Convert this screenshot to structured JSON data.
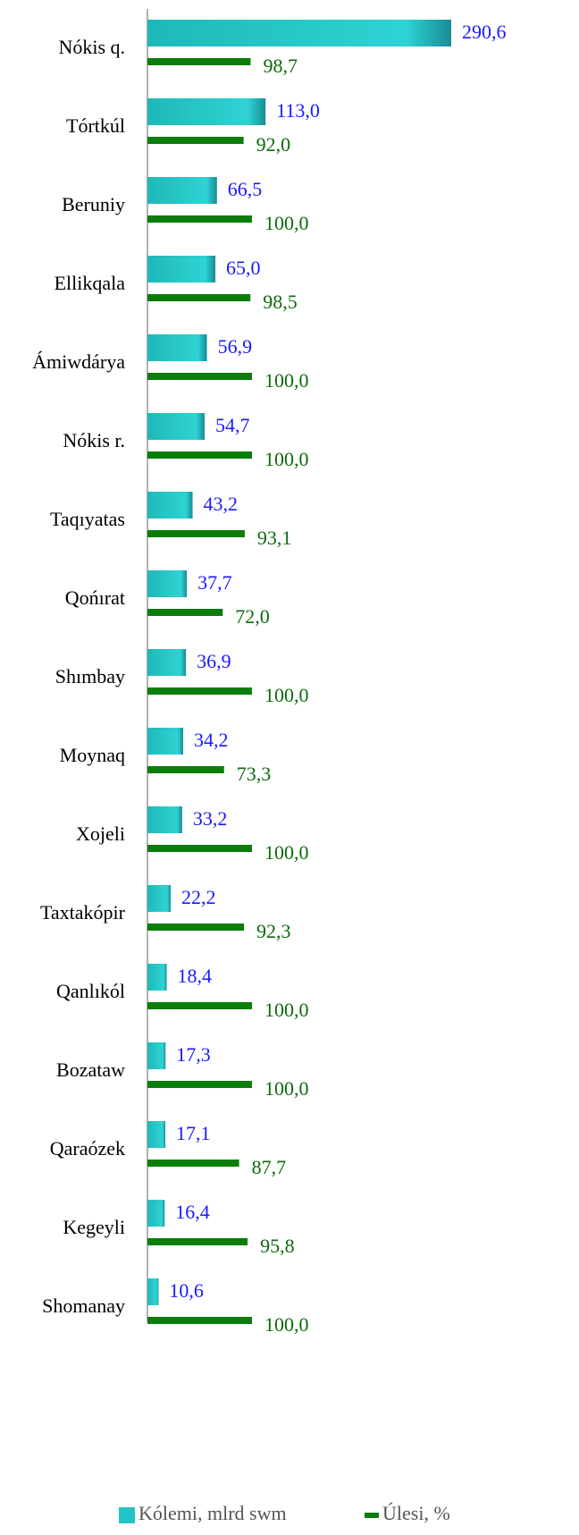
{
  "chart_data": {
    "type": "bar",
    "orientation": "horizontal",
    "categories": [
      "Nókis q.",
      "Tórtkúl",
      "Beruniy",
      "Ellikqala",
      "Ámiwdárya",
      "Nókis r.",
      "Taqıyatas",
      "Qońırat",
      "Shımbay",
      "Moynaq",
      "Xojeli",
      "Taxtakópir",
      "Qanlıkól",
      "Bozataw",
      "Qaraózek",
      "Kegeyli",
      "Shomanay"
    ],
    "series": [
      {
        "name": "Kólemi, mlrd swm",
        "color": "#22c4c4",
        "label_color": "#1a1aff",
        "values": [
          290.6,
          113.0,
          66.5,
          65.0,
          56.9,
          54.7,
          43.2,
          37.7,
          36.9,
          34.2,
          33.2,
          22.2,
          18.4,
          17.3,
          17.1,
          16.4,
          10.6
        ],
        "value_labels": [
          "290,6",
          "113,0",
          "66,5",
          "65,0",
          "56,9",
          "54,7",
          "43,2",
          "37,7",
          "36,9",
          "34,2",
          "33,2",
          "22,2",
          "18,4",
          "17,3",
          "17,1",
          "16,4",
          "10,6"
        ]
      },
      {
        "name": "Úlesi, %",
        "color": "#0b7d0b",
        "label_color": "#0b6b0b",
        "values": [
          98.7,
          92.0,
          100.0,
          98.5,
          100.0,
          100.0,
          93.1,
          72.0,
          100.0,
          73.3,
          100.0,
          92.3,
          100.0,
          100.0,
          87.7,
          95.8,
          100.0
        ],
        "value_labels": [
          "98,7",
          "92,0",
          "100,0",
          "98,5",
          "100,0",
          "100,0",
          "93,1",
          "72,0",
          "100,0",
          "73,3",
          "100,0",
          "92,3",
          "100,0",
          "100,0",
          "87,7",
          "95,8",
          "100,0"
        ]
      }
    ],
    "xlim": [
      0,
      300
    ],
    "legend": "bottom"
  }
}
